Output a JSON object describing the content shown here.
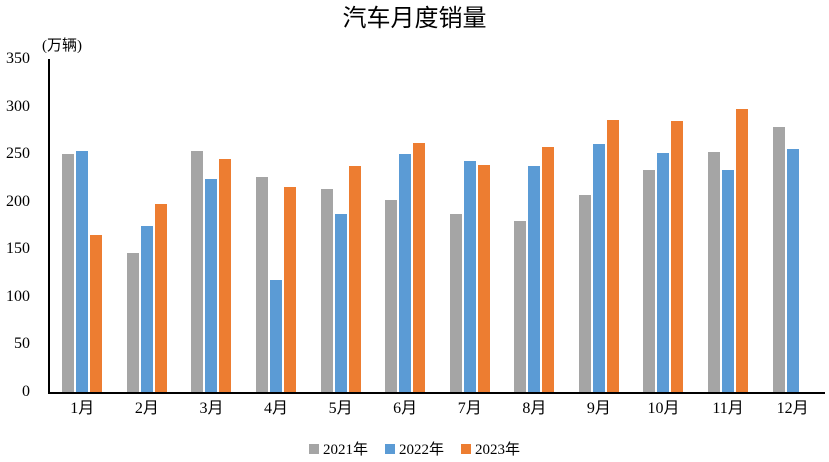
{
  "title": "汽车月度销量",
  "y_axis_unit": "(万辆)",
  "chart_data": {
    "type": "bar",
    "title": "汽车月度销量",
    "ylabel": "(万辆)",
    "categories": [
      "1月",
      "2月",
      "3月",
      "4月",
      "5月",
      "6月",
      "7月",
      "8月",
      "9月",
      "10月",
      "11月",
      "12月"
    ],
    "series": [
      {
        "name": "2021年",
        "color": "#A5A5A5",
        "values": [
          250,
          146,
          253,
          226,
          213,
          202,
          187,
          180,
          207,
          233,
          252,
          279
        ]
      },
      {
        "name": "2022年",
        "color": "#5B9BD5",
        "values": [
          253,
          174,
          224,
          118,
          187,
          250,
          243,
          238,
          261,
          251,
          233,
          255
        ]
      },
      {
        "name": "2023年",
        "color": "#ED7D31",
        "values": [
          165,
          198,
          245,
          216,
          238,
          262,
          239,
          258,
          286,
          285,
          297,
          null
        ]
      }
    ],
    "ylim": [
      0,
      350
    ],
    "y_ticks": [
      350,
      300,
      250,
      200,
      150,
      100,
      50,
      0
    ],
    "grid": false,
    "legend_position": "bottom",
    "axis_color": "#000000",
    "background_color": "#ffffff"
  }
}
